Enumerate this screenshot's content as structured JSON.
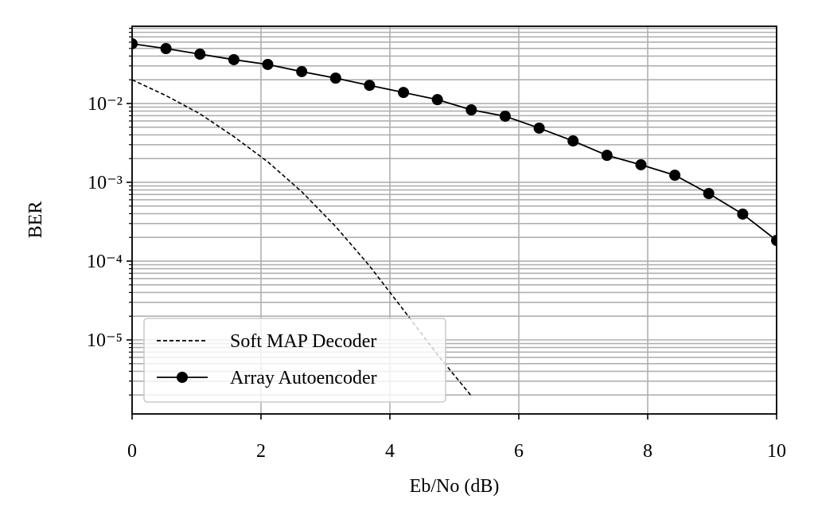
{
  "chart_data": {
    "type": "line",
    "log_y": true,
    "grid": true,
    "legend_position": "lower left",
    "xlabel": "Eb/No (dB)",
    "ylabel": "BER",
    "x": [
      0,
      0.526,
      1.053,
      1.579,
      2.105,
      2.632,
      3.158,
      3.684,
      4.211,
      4.737,
      5.263,
      5.789,
      6.316,
      6.842,
      7.368,
      7.895,
      8.421,
      8.947,
      9.474,
      10
    ],
    "series": [
      {
        "name": "Soft MAP Decoder",
        "color": "#000000",
        "style": "dashed",
        "values": [
          0.02,
          0.0126,
          0.0074,
          0.0038,
          0.00182,
          0.00076,
          0.000275,
          8.7e-05,
          2.4e-05,
          6.5e-06,
          1.95e-06,
          null,
          null,
          null,
          null,
          null,
          null,
          null,
          null,
          null
        ]
      },
      {
        "name": "Array Autoencoder",
        "color": "#000000",
        "style": "solid-marker",
        "values": [
          0.0573,
          0.0498,
          0.0423,
          0.036,
          0.0313,
          0.0254,
          0.021,
          0.017,
          0.0138,
          0.0112,
          0.0083,
          0.0069,
          0.00487,
          0.00335,
          0.0022,
          0.00167,
          0.00123,
          0.00072,
          0.000395,
          0.000183
        ]
      }
    ],
    "xlim": [
      0,
      10
    ],
    "xticks": [
      0,
      2,
      4,
      6,
      8,
      10
    ],
    "ylim": [
      1.15e-06,
      0.0955
    ],
    "yticks": [
      {
        "value": 0.01,
        "label": "10⁻²"
      },
      {
        "value": 0.001,
        "label": "10⁻³"
      },
      {
        "value": 0.0001,
        "label": "10⁻⁴"
      },
      {
        "value": 1e-05,
        "label": "10⁻⁵"
      }
    ],
    "yminorticks": [
      2e-06,
      3e-06,
      4e-06,
      5e-06,
      6e-06,
      7e-06,
      8e-06,
      9e-06,
      2e-05,
      3e-05,
      4e-05,
      5e-05,
      6e-05,
      7e-05,
      8e-05,
      9e-05,
      0.0002,
      0.0003,
      0.0004,
      0.0005,
      0.0006,
      0.0007,
      0.0008,
      0.0009,
      0.002,
      0.003,
      0.004,
      0.005,
      0.006,
      0.007,
      0.008,
      0.009,
      0.02,
      0.03,
      0.04,
      0.05,
      0.06,
      0.07,
      0.08,
      0.09
    ]
  }
}
